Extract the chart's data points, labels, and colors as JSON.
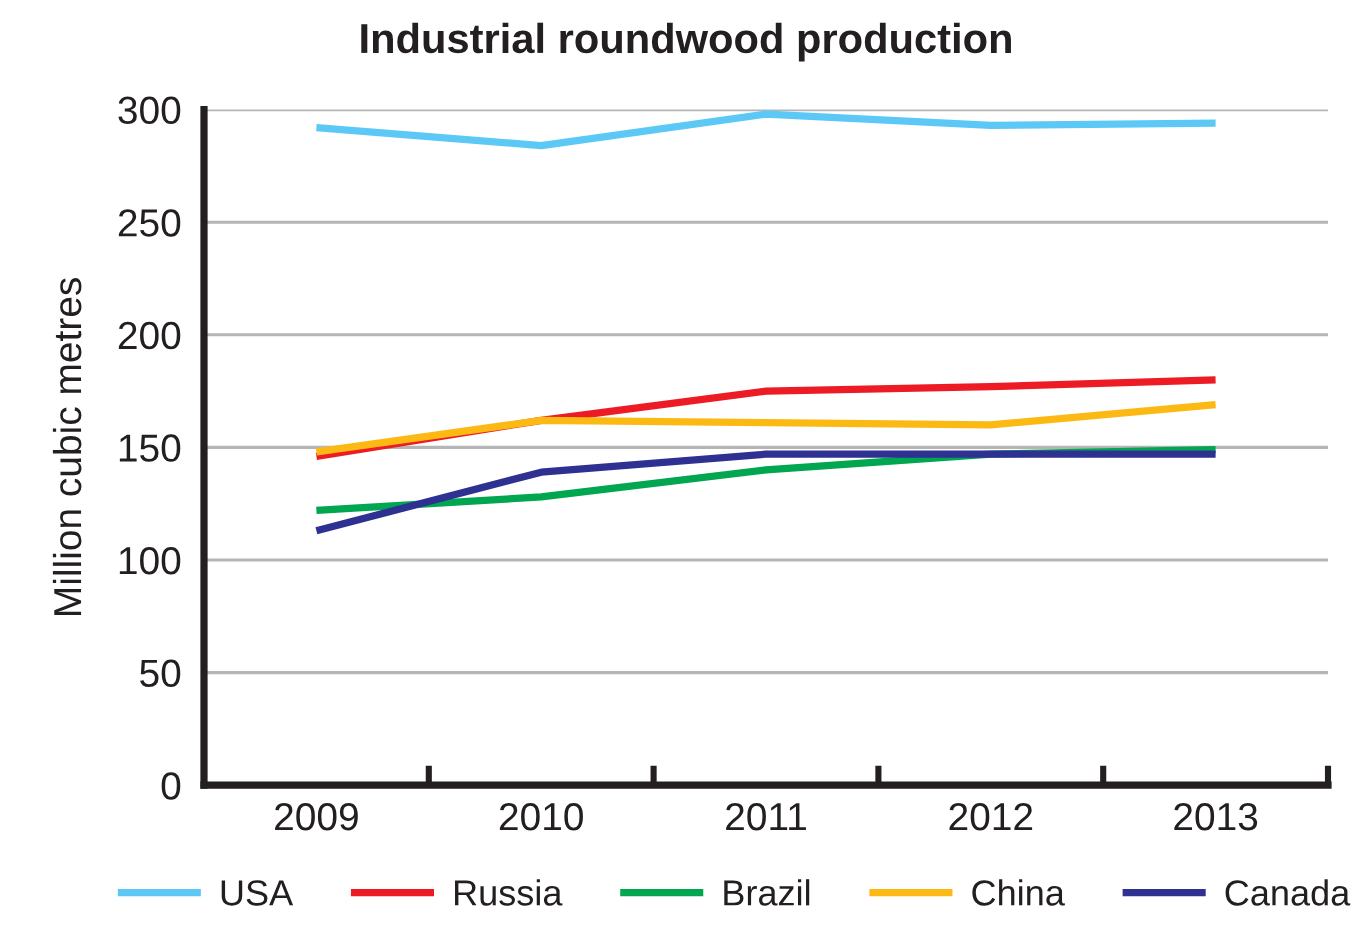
{
  "chart_data": {
    "type": "line",
    "title": "Industrial roundwood production",
    "ylabel": "Million cubic metres",
    "categories": [
      "2009",
      "2010",
      "2011",
      "2012",
      "2013"
    ],
    "series": [
      {
        "name": "USA",
        "color": "#5bc8f5",
        "values": [
          292,
          284,
          298,
          293,
          294
        ]
      },
      {
        "name": "Russia",
        "color": "#ed1c24",
        "values": [
          146,
          162,
          175,
          177,
          180
        ]
      },
      {
        "name": "Brazil",
        "color": "#00a650",
        "values": [
          122,
          128,
          140,
          147,
          149
        ]
      },
      {
        "name": "China",
        "color": "#fdb913",
        "values": [
          148,
          162,
          161,
          160,
          169
        ]
      },
      {
        "name": "Canada",
        "color": "#2e3192",
        "values": [
          113,
          139,
          147,
          147,
          147
        ]
      }
    ],
    "ylim": [
      0,
      300
    ],
    "yticks": [
      0,
      50,
      100,
      150,
      200,
      250,
      300
    ],
    "grid": "y",
    "legend": "bottom"
  }
}
